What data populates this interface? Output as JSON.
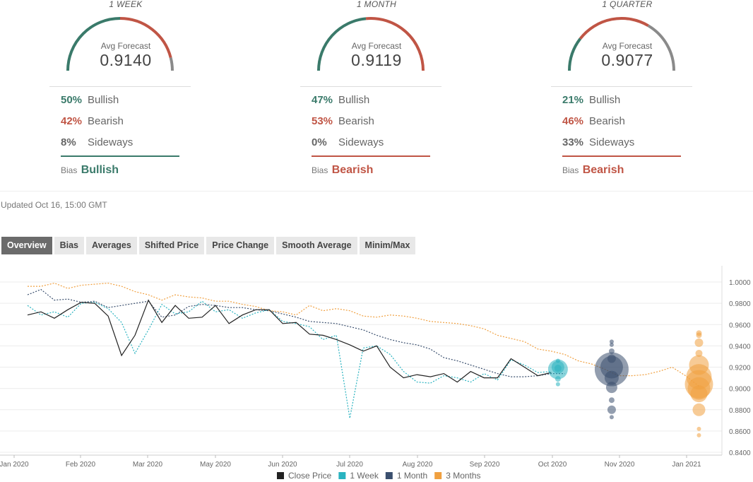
{
  "panels": [
    {
      "title": "1 WEEK",
      "avg_label": "Avg Forecast",
      "avg_value": "0.9140",
      "bullish_pct": "50%",
      "bullish_label": "Bullish",
      "bearish_pct": "42%",
      "bearish_label": "Bearish",
      "sideways_pct": "8%",
      "sideways_label": "Sideways",
      "bias_label": "Bias",
      "bias_value": "Bullish",
      "gauge": {
        "bullish": 0.5,
        "bearish": 0.42,
        "sideways": 0.08
      }
    },
    {
      "title": "1 MONTH",
      "avg_label": "Avg Forecast",
      "avg_value": "0.9119",
      "bullish_pct": "47%",
      "bullish_label": "Bullish",
      "bearish_pct": "53%",
      "bearish_label": "Bearish",
      "sideways_pct": "0%",
      "sideways_label": "Sideways",
      "bias_label": "Bias",
      "bias_value": "Bearish",
      "gauge": {
        "bullish": 0.47,
        "bearish": 0.53,
        "sideways": 0.0
      }
    },
    {
      "title": "1 QUARTER",
      "avg_label": "Avg Forecast",
      "avg_value": "0.9077",
      "bullish_pct": "21%",
      "bullish_label": "Bullish",
      "bearish_pct": "46%",
      "bearish_label": "Bearish",
      "sideways_pct": "33%",
      "sideways_label": "Sideways",
      "bias_label": "Bias",
      "bias_value": "Bearish",
      "gauge": {
        "bullish": 0.21,
        "bearish": 0.46,
        "sideways": 0.33
      }
    }
  ],
  "colors": {
    "bullish": "#3a7a6a",
    "bearish": "#c05545",
    "sideways": "#8a8a8a",
    "close": "#222222",
    "week": "#2ab3c0",
    "month": "#3a4f6e",
    "quarter": "#f0a040"
  },
  "updated": "Updated Oct 16, 15:00 GMT",
  "tabs": [
    "Overview",
    "Bias",
    "Averages",
    "Shifted Price",
    "Price Change",
    "Smooth Average",
    "Minim/Max"
  ],
  "chart_data": {
    "type": "line",
    "x_ticks": [
      "Jan 2020",
      "Feb 2020",
      "Mar 2020",
      "May 2020",
      "Jun 2020",
      "Jul 2020",
      "Aug 2020",
      "Sep 2020",
      "Oct 2020",
      "Nov 2020",
      "Jan 2021"
    ],
    "x_tick_pos": [
      0,
      1,
      2,
      3,
      4,
      5,
      6,
      7,
      8,
      9,
      10
    ],
    "y_ticks": [
      "0.8400",
      "0.8600",
      "0.8800",
      "0.9000",
      "0.9200",
      "0.9400",
      "0.9600",
      "0.9800",
      "1.0000"
    ],
    "ylim": [
      0.84,
      1.01
    ],
    "xlim": [
      0,
      10.5
    ],
    "grid": true,
    "legend_position": "bottom",
    "series": [
      {
        "name": "Close Price",
        "style": "solid",
        "points": [
          [
            0.2,
            0.969
          ],
          [
            0.4,
            0.972
          ],
          [
            0.6,
            0.966
          ],
          [
            0.8,
            0.974
          ],
          [
            1.0,
            0.981
          ],
          [
            1.2,
            0.98
          ],
          [
            1.4,
            0.968
          ],
          [
            1.6,
            0.931
          ],
          [
            1.8,
            0.95
          ],
          [
            2.0,
            0.983
          ],
          [
            2.2,
            0.962
          ],
          [
            2.4,
            0.978
          ],
          [
            2.6,
            0.966
          ],
          [
            2.8,
            0.967
          ],
          [
            3.0,
            0.978
          ],
          [
            3.2,
            0.961
          ],
          [
            3.4,
            0.969
          ],
          [
            3.6,
            0.974
          ],
          [
            3.8,
            0.974
          ],
          [
            4.0,
            0.961
          ],
          [
            4.2,
            0.962
          ],
          [
            4.4,
            0.951
          ],
          [
            4.6,
            0.95
          ],
          [
            4.8,
            0.946
          ],
          [
            5.0,
            0.941
          ],
          [
            5.2,
            0.935
          ],
          [
            5.4,
            0.94
          ],
          [
            5.6,
            0.92
          ],
          [
            5.8,
            0.91
          ],
          [
            6.0,
            0.913
          ],
          [
            6.2,
            0.911
          ],
          [
            6.4,
            0.914
          ],
          [
            6.6,
            0.906
          ],
          [
            6.8,
            0.916
          ],
          [
            7.0,
            0.91
          ],
          [
            7.2,
            0.91
          ],
          [
            7.4,
            0.928
          ],
          [
            7.6,
            0.92
          ],
          [
            7.8,
            0.912
          ],
          [
            8.0,
            0.915
          ]
        ]
      },
      {
        "name": "1 Week",
        "style": "dashed",
        "points": [
          [
            0.2,
            0.978
          ],
          [
            0.4,
            0.969
          ],
          [
            0.6,
            0.972
          ],
          [
            0.8,
            0.967
          ],
          [
            1.0,
            0.98
          ],
          [
            1.2,
            0.981
          ],
          [
            1.4,
            0.975
          ],
          [
            1.6,
            0.962
          ],
          [
            1.8,
            0.933
          ],
          [
            2.0,
            0.955
          ],
          [
            2.2,
            0.979
          ],
          [
            2.4,
            0.97
          ],
          [
            2.6,
            0.972
          ],
          [
            2.8,
            0.982
          ],
          [
            3.0,
            0.972
          ],
          [
            3.2,
            0.974
          ],
          [
            3.4,
            0.966
          ],
          [
            3.6,
            0.971
          ],
          [
            3.8,
            0.974
          ],
          [
            4.0,
            0.963
          ],
          [
            4.2,
            0.961
          ],
          [
            4.4,
            0.958
          ],
          [
            4.6,
            0.946
          ],
          [
            4.8,
            0.95
          ],
          [
            5.0,
            0.872
          ],
          [
            5.2,
            0.938
          ],
          [
            5.4,
            0.94
          ],
          [
            5.6,
            0.932
          ],
          [
            5.8,
            0.916
          ],
          [
            6.0,
            0.906
          ],
          [
            6.2,
            0.905
          ],
          [
            6.4,
            0.912
          ],
          [
            6.6,
            0.91
          ],
          [
            6.8,
            0.906
          ],
          [
            7.0,
            0.914
          ],
          [
            7.2,
            0.908
          ],
          [
            7.4,
            0.927
          ],
          [
            7.6,
            0.922
          ],
          [
            7.8,
            0.915
          ],
          [
            8.0,
            0.916
          ]
        ]
      },
      {
        "name": "1 Month",
        "style": "dashed",
        "points": [
          [
            0.2,
            0.988
          ],
          [
            0.4,
            0.993
          ],
          [
            0.6,
            0.983
          ],
          [
            0.8,
            0.984
          ],
          [
            1.0,
            0.981
          ],
          [
            1.2,
            0.982
          ],
          [
            1.4,
            0.976
          ],
          [
            1.6,
            0.978
          ],
          [
            1.8,
            0.98
          ],
          [
            2.0,
            0.982
          ],
          [
            2.2,
            0.967
          ],
          [
            2.4,
            0.969
          ],
          [
            2.6,
            0.977
          ],
          [
            2.8,
            0.979
          ],
          [
            3.0,
            0.978
          ],
          [
            3.2,
            0.976
          ],
          [
            3.4,
            0.976
          ],
          [
            3.6,
            0.974
          ],
          [
            3.8,
            0.973
          ],
          [
            4.0,
            0.97
          ],
          [
            4.2,
            0.967
          ],
          [
            4.4,
            0.963
          ],
          [
            4.6,
            0.962
          ],
          [
            4.8,
            0.961
          ],
          [
            5.0,
            0.958
          ],
          [
            5.2,
            0.955
          ],
          [
            5.4,
            0.95
          ],
          [
            5.6,
            0.946
          ],
          [
            5.8,
            0.943
          ],
          [
            6.0,
            0.941
          ],
          [
            6.2,
            0.937
          ],
          [
            6.4,
            0.929
          ],
          [
            6.6,
            0.926
          ],
          [
            6.8,
            0.922
          ],
          [
            7.0,
            0.918
          ],
          [
            7.2,
            0.914
          ],
          [
            7.4,
            0.911
          ],
          [
            7.6,
            0.911
          ],
          [
            7.8,
            0.912
          ],
          [
            8.0,
            0.914
          ],
          [
            8.2,
            0.914
          ]
        ]
      },
      {
        "name": "3 Months",
        "style": "dashed",
        "points": [
          [
            0.2,
            0.996
          ],
          [
            0.4,
            0.996
          ],
          [
            0.6,
            0.999
          ],
          [
            0.8,
            0.994
          ],
          [
            1.0,
            0.997
          ],
          [
            1.2,
            0.998
          ],
          [
            1.4,
            0.999
          ],
          [
            1.6,
            0.996
          ],
          [
            1.8,
            0.991
          ],
          [
            2.0,
            0.988
          ],
          [
            2.2,
            0.983
          ],
          [
            2.4,
            0.988
          ],
          [
            2.6,
            0.986
          ],
          [
            2.8,
            0.985
          ],
          [
            3.0,
            0.982
          ],
          [
            3.2,
            0.982
          ],
          [
            3.4,
            0.979
          ],
          [
            3.6,
            0.977
          ],
          [
            3.8,
            0.973
          ],
          [
            4.0,
            0.972
          ],
          [
            4.2,
            0.969
          ],
          [
            4.4,
            0.978
          ],
          [
            4.6,
            0.973
          ],
          [
            4.8,
            0.975
          ],
          [
            5.0,
            0.973
          ],
          [
            5.2,
            0.968
          ],
          [
            5.4,
            0.967
          ],
          [
            5.6,
            0.969
          ],
          [
            5.8,
            0.968
          ],
          [
            6.0,
            0.966
          ],
          [
            6.2,
            0.963
          ],
          [
            6.4,
            0.962
          ],
          [
            6.6,
            0.961
          ],
          [
            6.8,
            0.959
          ],
          [
            7.0,
            0.956
          ],
          [
            7.2,
            0.95
          ],
          [
            7.4,
            0.947
          ],
          [
            7.6,
            0.944
          ],
          [
            7.8,
            0.937
          ],
          [
            8.0,
            0.935
          ],
          [
            8.2,
            0.932
          ],
          [
            8.4,
            0.926
          ],
          [
            8.6,
            0.923
          ],
          [
            8.8,
            0.918
          ],
          [
            9.0,
            0.912
          ],
          [
            9.2,
            0.912
          ],
          [
            9.4,
            0.913
          ],
          [
            9.6,
            0.916
          ],
          [
            9.8,
            0.92
          ],
          [
            10.0,
            0.912
          ],
          [
            10.2,
            0.902
          ]
        ]
      }
    ],
    "bubbles": [
      {
        "series": "1 Week",
        "x": 8.1,
        "points": [
          [
            0.92,
            9
          ],
          [
            0.919,
            5
          ],
          [
            0.909,
            4
          ],
          [
            0.904,
            3
          ],
          [
            0.926,
            3
          ],
          [
            0.918,
            14
          ]
        ]
      },
      {
        "series": "1 Month",
        "x": 8.9,
        "points": [
          [
            0.918,
            24
          ],
          [
            0.92,
            16
          ],
          [
            0.91,
            10
          ],
          [
            0.901,
            8
          ],
          [
            0.928,
            6
          ],
          [
            0.935,
            4
          ],
          [
            0.941,
            3
          ],
          [
            0.944,
            3
          ],
          [
            0.889,
            4
          ],
          [
            0.88,
            6
          ],
          [
            0.873,
            3
          ]
        ]
      },
      {
        "series": "3 Months",
        "x": 10.2,
        "points": [
          [
            0.95,
            4
          ],
          [
            0.943,
            6
          ],
          [
            0.933,
            5
          ],
          [
            0.922,
            14
          ],
          [
            0.911,
            18
          ],
          [
            0.904,
            20
          ],
          [
            0.9,
            16
          ],
          [
            0.895,
            12
          ],
          [
            0.88,
            9
          ],
          [
            0.862,
            3
          ],
          [
            0.856,
            3
          ],
          [
            0.952,
            4
          ]
        ]
      }
    ]
  }
}
